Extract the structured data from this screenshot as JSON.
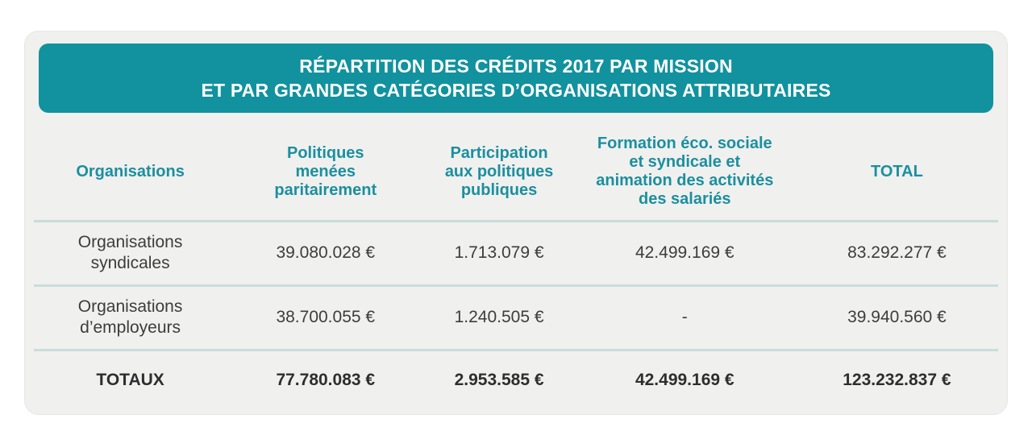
{
  "header": {
    "title_line1": "RÉPARTITION DES CRÉDITS 2017 PAR MISSION",
    "title_line2": "ET PAR GRANDES CATÉGORIES D’ORGANISATIONS ATTRIBUTAIRES"
  },
  "chart_data": {
    "type": "table",
    "title": "RÉPARTITION DES CRÉDITS 2017 PAR MISSION ET PAR GRANDES CATÉGORIES D’ORGANISATIONS ATTRIBUTAIRES",
    "columns": [
      "Organisations",
      "Politiques menées paritairement",
      "Participation aux politiques publiques",
      "Formation éco. sociale et syndicale et animation des activités des salariés",
      "TOTAL"
    ],
    "rows": [
      [
        "Organisations syndicales",
        "39.080.028 €",
        "1.713.079 €",
        "42.499.169 €",
        "83.292.277 €"
      ],
      [
        "Organisations d’employeurs",
        "38.700.055 €",
        "1.240.505 €",
        "-",
        "39.940.560 €"
      ],
      [
        "TOTAUX",
        "77.780.083 €",
        "2.953.585 €",
        "42.499.169 €",
        "123.232.837 €"
      ]
    ],
    "currency_symbol": "€"
  },
  "colors": {
    "title_band_bg": "#11929e",
    "title_text": "#ffffff",
    "column_header_text": "#1b8fa0",
    "card_bg": "#f0f0ee",
    "row_separator": "#c7dddc",
    "data_text": "#3d3d3d",
    "totals_text": "#2e2e2e"
  }
}
